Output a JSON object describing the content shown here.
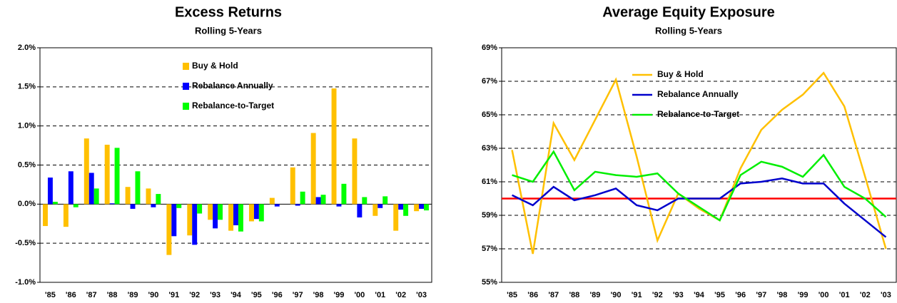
{
  "chart_data": [
    {
      "type": "bar",
      "title": "Excess Returns",
      "subtitle": "Rolling 5-Years",
      "categories": [
        "'85",
        "'86",
        "'87",
        "'88",
        "'89",
        "'90",
        "'91",
        "'92",
        "'93",
        "'94",
        "'95",
        "'96",
        "'97",
        "'98",
        "'99",
        "'00",
        "'01",
        "'02",
        "'03"
      ],
      "series": [
        {
          "name": "Buy & Hold",
          "color": "#ffc000",
          "values": [
            -0.28,
            -0.29,
            0.84,
            0.76,
            0.22,
            0.2,
            -0.65,
            -0.4,
            -0.2,
            -0.34,
            -0.22,
            0.08,
            0.47,
            0.91,
            1.48,
            0.84,
            -0.15,
            -0.34,
            -0.09
          ]
        },
        {
          "name": "Rebalance Annually",
          "color": "#0000ff",
          "values": [
            0.34,
            0.42,
            0.4,
            0.01,
            -0.06,
            -0.04,
            -0.41,
            -0.52,
            -0.31,
            -0.27,
            -0.19,
            -0.03,
            -0.02,
            0.09,
            -0.03,
            -0.17,
            -0.05,
            -0.07,
            -0.06
          ]
        },
        {
          "name": "Rebalance-to-Target",
          "color": "#00ff00",
          "values": [
            0.03,
            -0.04,
            0.2,
            0.72,
            0.42,
            0.13,
            -0.05,
            -0.12,
            -0.2,
            -0.35,
            -0.22,
            0.0,
            0.16,
            0.12,
            0.26,
            0.09,
            0.1,
            -0.15,
            -0.08
          ]
        }
      ],
      "ylim": [
        -1,
        2
      ],
      "yticks": [
        {
          "value": -1,
          "label": "-1.0%"
        },
        {
          "value": -0.5,
          "label": "-0.5%"
        },
        {
          "value": 0,
          "label": "0.0%"
        },
        {
          "value": 0.5,
          "label": "0.5%"
        },
        {
          "value": 1,
          "label": "1.0%"
        },
        {
          "value": 1.5,
          "label": "1.5%"
        },
        {
          "value": 2,
          "label": "2.0%"
        }
      ],
      "grid": true,
      "legend": "top-center"
    },
    {
      "type": "line",
      "title": "Average Equity Exposure",
      "subtitle": "Rolling 5-Years",
      "categories": [
        "'85",
        "'86",
        "'87",
        "'88",
        "'89",
        "'90",
        "'91",
        "'92",
        "'93",
        "'94",
        "'95",
        "'96",
        "'97",
        "'98",
        "'99",
        "'00",
        "'01",
        "'02",
        "'03"
      ],
      "series": [
        {
          "name": "Buy & Hold",
          "color": "#ffc000",
          "values": [
            62.9,
            56.7,
            64.5,
            62.3,
            64.7,
            67.1,
            62.5,
            57.5,
            60.3,
            59.4,
            58.7,
            61.8,
            64.1,
            65.3,
            66.2,
            67.5,
            65.5,
            61.3,
            57.0
          ]
        },
        {
          "name": "Rebalance Annually",
          "color": "#0000cc",
          "values": [
            60.2,
            59.6,
            60.7,
            59.9,
            60.2,
            60.6,
            59.6,
            59.3,
            60.0,
            60.0,
            60.0,
            60.9,
            61.0,
            61.2,
            60.9,
            60.9,
            59.7,
            58.7,
            57.7
          ]
        },
        {
          "name": "Rebalance-to-Target",
          "color": "#00ee00",
          "values": [
            61.4,
            61.0,
            62.8,
            60.5,
            61.6,
            61.4,
            61.3,
            61.5,
            60.3,
            59.5,
            58.7,
            61.4,
            62.2,
            61.9,
            61.3,
            62.6,
            60.7,
            60.0,
            58.9
          ]
        }
      ],
      "reference_line": {
        "value": 60,
        "color": "#ff0000"
      },
      "ylim": [
        55,
        69
      ],
      "yticks": [
        {
          "value": 55,
          "label": "55%"
        },
        {
          "value": 57,
          "label": "57%"
        },
        {
          "value": 59,
          "label": "59%"
        },
        {
          "value": 61,
          "label": "61%"
        },
        {
          "value": 63,
          "label": "63%"
        },
        {
          "value": 65,
          "label": "65%"
        },
        {
          "value": 67,
          "label": "67%"
        },
        {
          "value": 69,
          "label": "69%"
        }
      ],
      "grid": true,
      "legend": "top-center"
    }
  ]
}
